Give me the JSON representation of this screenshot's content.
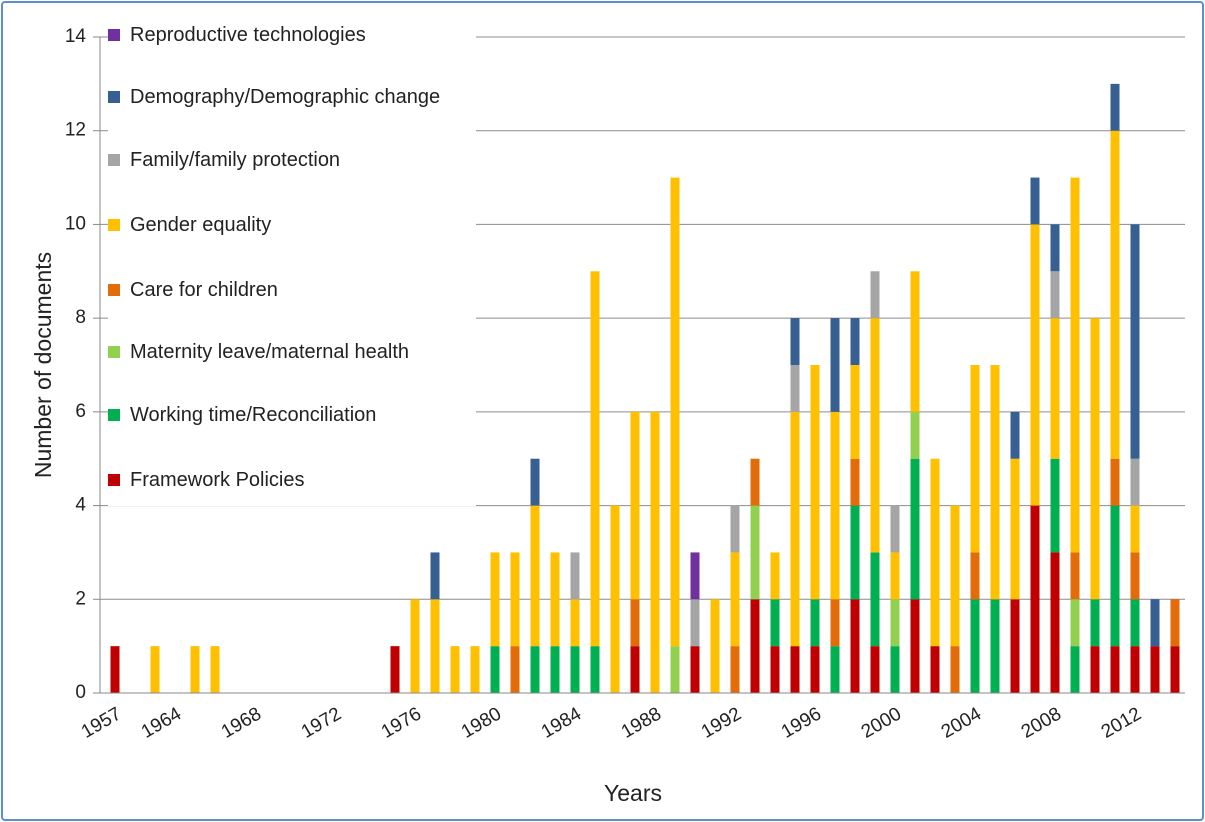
{
  "chart_data": {
    "type": "stacked_bar",
    "x_label": "Years",
    "y_label": "Number of documents",
    "categories": [
      "1957",
      null,
      null,
      "1964",
      null,
      null,
      null,
      "1968",
      null,
      null,
      null,
      "1972",
      null,
      null,
      null,
      "1976",
      null,
      null,
      null,
      "1980",
      null,
      null,
      null,
      "1984",
      null,
      null,
      null,
      "1988",
      null,
      null,
      null,
      "1992",
      null,
      null,
      null,
      "1996",
      null,
      null,
      null,
      "2000",
      null,
      null,
      null,
      "2004",
      null,
      null,
      null,
      "2008",
      null,
      null,
      null,
      "2012",
      null,
      null
    ],
    "ylim": [
      0,
      14
    ],
    "yticks": [
      0,
      2,
      4,
      6,
      8,
      10,
      12,
      14
    ],
    "grid": true,
    "series": [
      {
        "name": "Framework Policies",
        "color": "#c00000",
        "values": [
          1,
          null,
          null,
          null,
          null,
          null,
          null,
          null,
          null,
          null,
          null,
          null,
          null,
          null,
          1,
          null,
          null,
          null,
          null,
          null,
          null,
          null,
          null,
          null,
          null,
          null,
          1,
          null,
          null,
          1,
          null,
          null,
          2,
          1,
          1,
          1,
          null,
          2,
          1,
          null,
          2,
          1,
          null,
          null,
          null,
          2,
          4,
          3,
          null,
          1,
          1,
          1,
          1,
          1
        ]
      },
      {
        "name": "Working time/Reconciliation",
        "color": "#00b050",
        "values": [
          null,
          null,
          null,
          null,
          null,
          null,
          null,
          null,
          null,
          null,
          null,
          null,
          null,
          null,
          null,
          null,
          null,
          null,
          null,
          1,
          null,
          1,
          1,
          1,
          1,
          null,
          null,
          null,
          null,
          null,
          null,
          null,
          null,
          1,
          null,
          1,
          1,
          2,
          2,
          1,
          3,
          null,
          null,
          2,
          2,
          null,
          null,
          2,
          1,
          1,
          3,
          1,
          null,
          null
        ]
      },
      {
        "name": "Maternity leave/maternal health",
        "color": "#92d050",
        "values": [
          null,
          null,
          null,
          null,
          null,
          null,
          null,
          null,
          null,
          null,
          null,
          null,
          null,
          null,
          null,
          null,
          null,
          null,
          null,
          null,
          null,
          null,
          null,
          null,
          null,
          null,
          null,
          null,
          1,
          null,
          null,
          null,
          2,
          null,
          null,
          null,
          null,
          null,
          null,
          1,
          1,
          null,
          null,
          null,
          null,
          null,
          null,
          null,
          1,
          null,
          null,
          null,
          null,
          null
        ]
      },
      {
        "name": "Care for children",
        "color": "#e36c09",
        "values": [
          null,
          null,
          null,
          null,
          null,
          null,
          null,
          null,
          null,
          null,
          null,
          null,
          null,
          null,
          null,
          null,
          null,
          null,
          null,
          null,
          1,
          null,
          null,
          null,
          null,
          null,
          1,
          null,
          null,
          null,
          null,
          1,
          1,
          null,
          null,
          null,
          1,
          1,
          null,
          null,
          null,
          null,
          1,
          1,
          null,
          null,
          null,
          null,
          1,
          null,
          1,
          1,
          null,
          1
        ]
      },
      {
        "name": "Gender equality",
        "color": "#ffc000",
        "values": [
          null,
          null,
          1,
          null,
          1,
          1,
          null,
          null,
          null,
          null,
          null,
          null,
          null,
          null,
          null,
          2,
          2,
          1,
          1,
          2,
          2,
          3,
          2,
          1,
          8,
          4,
          4,
          6,
          10,
          null,
          2,
          2,
          null,
          1,
          5,
          5,
          4,
          2,
          5,
          1,
          3,
          4,
          3,
          4,
          5,
          3,
          6,
          3,
          8,
          6,
          7,
          1,
          null,
          null
        ]
      },
      {
        "name": "Family/family protection",
        "color": "#a5a5a5",
        "values": [
          null,
          null,
          null,
          null,
          null,
          null,
          null,
          null,
          null,
          null,
          null,
          null,
          null,
          null,
          null,
          null,
          null,
          null,
          null,
          null,
          null,
          null,
          null,
          1,
          null,
          null,
          null,
          null,
          null,
          1,
          null,
          1,
          null,
          null,
          1,
          null,
          null,
          null,
          1,
          1,
          null,
          null,
          null,
          null,
          null,
          null,
          null,
          1,
          null,
          null,
          null,
          1,
          null,
          null
        ]
      },
      {
        "name": "Demography/Demographic change",
        "color": "#376092",
        "values": [
          null,
          null,
          null,
          null,
          null,
          null,
          null,
          null,
          null,
          null,
          null,
          null,
          null,
          null,
          null,
          null,
          1,
          null,
          null,
          null,
          null,
          1,
          null,
          null,
          null,
          null,
          null,
          null,
          null,
          null,
          null,
          null,
          null,
          null,
          1,
          null,
          2,
          1,
          null,
          null,
          null,
          null,
          null,
          null,
          null,
          1,
          1,
          1,
          null,
          null,
          1,
          5,
          1,
          null
        ]
      },
      {
        "name": "Reproductive technologies",
        "color": "#7030a0",
        "values": [
          null,
          null,
          null,
          null,
          null,
          null,
          null,
          null,
          null,
          null,
          null,
          null,
          null,
          null,
          null,
          null,
          null,
          null,
          null,
          null,
          null,
          null,
          null,
          null,
          null,
          null,
          null,
          null,
          null,
          1,
          null,
          null,
          null,
          null,
          null,
          null,
          null,
          null,
          null,
          null,
          null,
          null,
          null,
          null,
          null,
          null,
          null,
          null,
          null,
          null,
          null,
          null,
          null,
          null
        ]
      }
    ]
  }
}
